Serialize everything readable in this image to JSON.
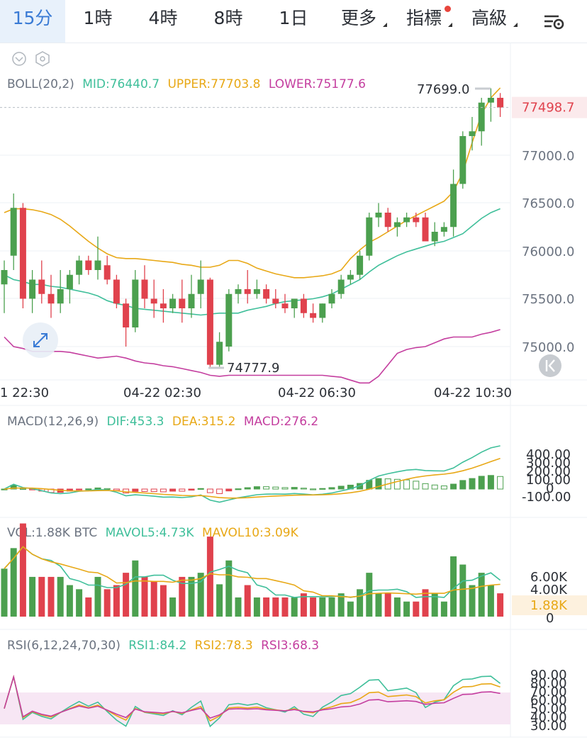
{
  "tabs": [
    {
      "label": "15分",
      "active": true
    },
    {
      "label": "1時"
    },
    {
      "label": "4時"
    },
    {
      "label": "8時"
    },
    {
      "label": "1日"
    },
    {
      "label": "更多",
      "dropdown": true
    },
    {
      "label": "指標",
      "dropdown": true,
      "badge": true
    },
    {
      "label": "高級",
      "dropdown": true
    }
  ],
  "icons": {
    "settings": "chart-settings-icon",
    "collapse": "chevron-down-circle-icon",
    "indicator_settings": "hexagon-gear-icon",
    "expand": "expand-arrows-icon",
    "back": "double-chevron-left-icon"
  },
  "colors": {
    "up": "#4ca04f",
    "down": "#e0424d",
    "mid": "#3fbf9a",
    "upper": "#e8a816",
    "lower": "#c43e9f",
    "price_line": "#e0424d"
  },
  "boll": {
    "label": "BOLL(20,2)",
    "mid": "MID:76440.7",
    "upper": "UPPER:77703.8",
    "lower": "LOWER:75177.6"
  },
  "main": {
    "high_label": "77699.0",
    "low_label": "74777.9",
    "current_price": "77498.7",
    "price_ticks": [
      "77000.0",
      "76500.0",
      "76000.0",
      "75500.0",
      "75000.0"
    ],
    "time_ticks": [
      "1 22:30",
      "04-22 02:30",
      "04-22 06:30",
      "04-22 10:30"
    ]
  },
  "macd": {
    "label": "MACD(12,26,9)",
    "dif": "DIF:453.3",
    "dea": "DEA:315.2",
    "macd": "MACD:276.2",
    "ticks": [
      "400.00",
      "300.00",
      "200.00",
      "100.00",
      "0",
      "-100.00"
    ]
  },
  "vol": {
    "label": "VOL:1.88K BTC",
    "mavol5": "MAVOL5:4.73K",
    "mavol10": "MAVOL10:3.09K",
    "ticks": [
      "6.00K",
      "4.00K",
      "0"
    ],
    "current": "1.88K"
  },
  "rsi": {
    "label": "RSI(6,12,24,70,30)",
    "rsi1": "RSI1:84.2",
    "rsi2": "RSI2:78.3",
    "rsi3": "RSI3:68.3",
    "ticks": [
      "90.00",
      "80.00",
      "70.00",
      "60.00",
      "50.00",
      "40.00",
      "30.00"
    ]
  },
  "chart_data": {
    "type": "candlestick",
    "candles": [
      {
        "o": 75650,
        "h": 75900,
        "l": 75350,
        "c": 75800
      },
      {
        "o": 75950,
        "h": 76600,
        "l": 75800,
        "c": 76450
      },
      {
        "o": 76450,
        "h": 76500,
        "l": 75400,
        "c": 75500
      },
      {
        "o": 75500,
        "h": 75800,
        "l": 75350,
        "c": 75700
      },
      {
        "o": 75700,
        "h": 75900,
        "l": 75450,
        "c": 75550
      },
      {
        "o": 75550,
        "h": 75750,
        "l": 75300,
        "c": 75450
      },
      {
        "o": 75450,
        "h": 75800,
        "l": 75350,
        "c": 75600
      },
      {
        "o": 75600,
        "h": 75800,
        "l": 75450,
        "c": 75750
      },
      {
        "o": 75750,
        "h": 75950,
        "l": 75650,
        "c": 75900
      },
      {
        "o": 75900,
        "h": 75950,
        "l": 75750,
        "c": 75800
      },
      {
        "o": 75800,
        "h": 76150,
        "l": 75700,
        "c": 75900
      },
      {
        "o": 75850,
        "h": 75950,
        "l": 75650,
        "c": 75700
      },
      {
        "o": 75700,
        "h": 75750,
        "l": 75400,
        "c": 75450
      },
      {
        "o": 75450,
        "h": 75500,
        "l": 75000,
        "c": 75200
      },
      {
        "o": 75200,
        "h": 75800,
        "l": 75150,
        "c": 75700
      },
      {
        "o": 75700,
        "h": 75850,
        "l": 75400,
        "c": 75500
      },
      {
        "o": 75500,
        "h": 75700,
        "l": 75300,
        "c": 75450
      },
      {
        "o": 75450,
        "h": 75600,
        "l": 75250,
        "c": 75400
      },
      {
        "o": 75400,
        "h": 75550,
        "l": 75350,
        "c": 75500
      },
      {
        "o": 75500,
        "h": 75700,
        "l": 75250,
        "c": 75400
      },
      {
        "o": 75400,
        "h": 75750,
        "l": 75300,
        "c": 75550
      },
      {
        "o": 75550,
        "h": 75900,
        "l": 75400,
        "c": 75700
      },
      {
        "o": 75700,
        "h": 75720,
        "l": 74780,
        "c": 74810
      },
      {
        "o": 74810,
        "h": 75150,
        "l": 74790,
        "c": 75050
      },
      {
        "o": 75000,
        "h": 75600,
        "l": 74950,
        "c": 75550
      },
      {
        "o": 75550,
        "h": 75650,
        "l": 75450,
        "c": 75600
      },
      {
        "o": 75600,
        "h": 75800,
        "l": 75450,
        "c": 75550
      },
      {
        "o": 75550,
        "h": 75700,
        "l": 75500,
        "c": 75600
      },
      {
        "o": 75600,
        "h": 75650,
        "l": 75450,
        "c": 75500
      },
      {
        "o": 75500,
        "h": 75600,
        "l": 75400,
        "c": 75450
      },
      {
        "o": 75450,
        "h": 75550,
        "l": 75350,
        "c": 75400
      },
      {
        "o": 75400,
        "h": 75500,
        "l": 75300,
        "c": 75500
      },
      {
        "o": 75500,
        "h": 75550,
        "l": 75300,
        "c": 75350
      },
      {
        "o": 75350,
        "h": 75450,
        "l": 75250,
        "c": 75300
      },
      {
        "o": 75300,
        "h": 75450,
        "l": 75250,
        "c": 75450
      },
      {
        "o": 75450,
        "h": 75600,
        "l": 75400,
        "c": 75550
      },
      {
        "o": 75550,
        "h": 75750,
        "l": 75500,
        "c": 75700
      },
      {
        "o": 75700,
        "h": 75800,
        "l": 75650,
        "c": 75750
      },
      {
        "o": 75750,
        "h": 76000,
        "l": 75700,
        "c": 75950
      },
      {
        "o": 75950,
        "h": 76400,
        "l": 75900,
        "c": 76350
      },
      {
        "o": 76350,
        "h": 76500,
        "l": 76250,
        "c": 76400
      },
      {
        "o": 76400,
        "h": 76450,
        "l": 76200,
        "c": 76250
      },
      {
        "o": 76250,
        "h": 76350,
        "l": 76150,
        "c": 76300
      },
      {
        "o": 76300,
        "h": 76400,
        "l": 76250,
        "c": 76350
      },
      {
        "o": 76350,
        "h": 76400,
        "l": 76250,
        "c": 76300
      },
      {
        "o": 76350,
        "h": 76400,
        "l": 76100,
        "c": 76100
      },
      {
        "o": 76100,
        "h": 76300,
        "l": 76050,
        "c": 76200
      },
      {
        "o": 76200,
        "h": 76300,
        "l": 76150,
        "c": 76250
      },
      {
        "o": 76250,
        "h": 76850,
        "l": 76150,
        "c": 76700
      },
      {
        "o": 76700,
        "h": 77250,
        "l": 76650,
        "c": 77200
      },
      {
        "o": 77200,
        "h": 77400,
        "l": 77050,
        "c": 77250
      },
      {
        "o": 77250,
        "h": 77600,
        "l": 77100,
        "c": 77550
      },
      {
        "o": 77550,
        "h": 77699,
        "l": 77350,
        "c": 77600
      },
      {
        "o": 77600,
        "h": 77650,
        "l": 77400,
        "c": 77498.7
      }
    ],
    "boll_mid": [
      75750,
      75700,
      75680,
      75650,
      75650,
      75630,
      75620,
      75600,
      75580,
      75560,
      75530,
      75480,
      75450,
      75430,
      75400,
      75390,
      75380,
      75370,
      75360,
      75350,
      75340,
      75330,
      75340,
      75350,
      75350,
      75350,
      75380,
      75400,
      75420,
      75450,
      75470,
      75480,
      75490,
      75500,
      75520,
      75550,
      75600,
      75650,
      75700,
      75780,
      75850,
      75900,
      75950,
      75990,
      76020,
      76050,
      76080,
      76100,
      76140,
      76180,
      76260,
      76340,
      76400,
      76440.7
    ],
    "boll_upper": [
      76400,
      76440,
      76440,
      76430,
      76410,
      76380,
      76330,
      76260,
      76180,
      76100,
      76030,
      75970,
      75930,
      75920,
      75920,
      75910,
      75900,
      75890,
      75880,
      75860,
      75850,
      75830,
      75830,
      75850,
      75900,
      75900,
      75870,
      75820,
      75790,
      75760,
      75740,
      75720,
      75720,
      75730,
      75740,
      75760,
      75800,
      75920,
      76010,
      76090,
      76140,
      76200,
      76260,
      76320,
      76370,
      76420,
      76470,
      76520,
      76620,
      76820,
      77130,
      77430,
      77600,
      77703.8
    ],
    "boll_lower": [
      75100,
      75000,
      74980,
      74950,
      74950,
      74950,
      74950,
      74940,
      74920,
      74900,
      74880,
      74890,
      74900,
      74880,
      74850,
      74830,
      74820,
      74800,
      74790,
      74770,
      74750,
      74730,
      74700,
      74690,
      74700,
      74700,
      74700,
      74700,
      74700,
      74700,
      74700,
      74700,
      74700,
      74700,
      74700,
      74690,
      74680,
      74650,
      74620,
      74620,
      74690,
      74810,
      74930,
      74970,
      74990,
      75000,
      75040,
      75080,
      75100,
      75100,
      75100,
      75130,
      75150,
      75177.6
    ]
  }
}
